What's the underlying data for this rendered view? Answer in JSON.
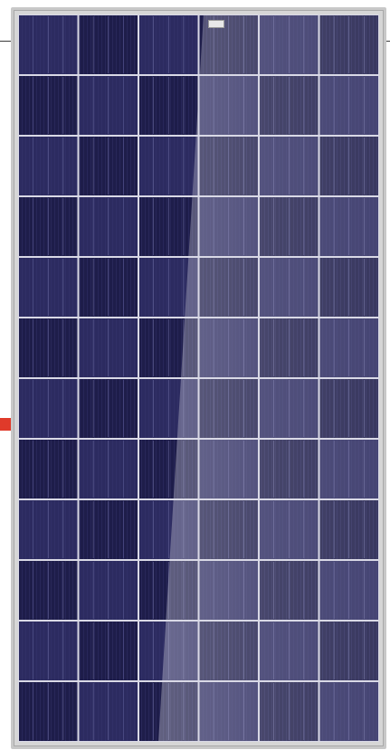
{
  "image": {
    "subject": "solar-panel",
    "colors": {
      "background": "#ffffff",
      "frame": "#c8c8c8",
      "cell_dark": "#1e1d4a",
      "cell_mid": "#2c2b60",
      "grid_line": "#d9d9e6",
      "marker": "#e03a2a"
    },
    "cell_grid": {
      "columns": 6,
      "rows": 12
    }
  }
}
